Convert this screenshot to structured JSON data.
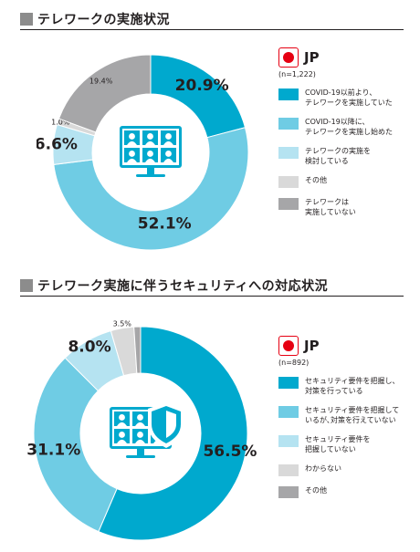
{
  "charts": [
    {
      "title": "テレワークの実施状況",
      "country": "JP",
      "sample": "(n=1,222)",
      "icon": "video-conference-monitor-icon",
      "chart_data": {
        "type": "pie",
        "donut": true,
        "categories": [
          "COVID-19以前より、\nテレワークを実施していた",
          "COVID-19以降に、\nテレワークを実施し始めた",
          "テレワークの実施を\n検討している",
          "その他",
          "テレワークは\n実施していない"
        ],
        "values": [
          20.9,
          52.1,
          6.6,
          1.0,
          19.4
        ],
        "labels": [
          "20.9%",
          "52.1%",
          "6.6%",
          "1.0%",
          "19.4%"
        ],
        "colors": [
          "#00a9ce",
          "#6fcce4",
          "#b5e3f1",
          "#d9d9d9",
          "#a6a6a8"
        ],
        "legend": "right"
      }
    },
    {
      "title": "テレワーク実施に伴うセキュリティへの対応状況",
      "country": "JP",
      "sample": "(n=892)",
      "icon": "monitor-shield-icon",
      "chart_data": {
        "type": "pie",
        "donut": true,
        "categories": [
          "セキュリティ要件を把握し、\n対策を行っている",
          "セキュリティ要件を把握して\nいるが､対策を行えていない",
          "セキュリティ要件を\n把握していない",
          "わからない",
          "その他"
        ],
        "values": [
          56.5,
          31.1,
          8.0,
          3.5,
          1.0
        ],
        "labels": [
          "56.5%",
          "31.1%",
          "8.0%",
          "3.5%",
          "1.0%"
        ],
        "colors": [
          "#00a9ce",
          "#6fcce4",
          "#b5e3f1",
          "#d9d9d9",
          "#a6a6a8"
        ],
        "legend": "right"
      }
    }
  ]
}
